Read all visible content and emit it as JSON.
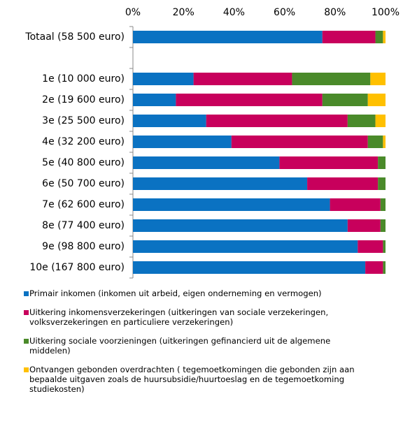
{
  "chart_data": {
    "type": "stacked-bar-horizontal",
    "categories": [
      "Totaal (58 500 euro)",
      null,
      "1e (10 000 euro)",
      "2e (19 600 euro)",
      "3e (25 500 euro)",
      "4e (32 200 euro)",
      "5e (40 800 euro)",
      "6e (50 700 euro)",
      "7e (62 600 euro)",
      "8e (77 400 euro)",
      "9e (98 800 euro)",
      "10e (167 800 euro)"
    ],
    "series": [
      {
        "name": "Primair inkomen (inkomen uit arbeid, eigen onderneming en vermogen)",
        "color": "#0a72c2",
        "values": [
          75,
          null,
          24,
          17,
          29,
          39,
          58,
          69,
          78,
          85,
          89,
          92
        ]
      },
      {
        "name": "Uitkering inkomensverzekeringen (uitkeringen van sociale verzekeringen, volksverzekeringen en particuliere verzekeringen)",
        "color": "#c8005c",
        "values": [
          21,
          null,
          39,
          58,
          56,
          54,
          39,
          28,
          20,
          13,
          10,
          7
        ]
      },
      {
        "name": "Uitkering sociale voorzieningen (uitkeringen gefinancierd uit de algemene middelen)",
        "color": "#4a8a2a",
        "values": [
          3,
          null,
          31,
          18,
          11,
          6,
          3,
          3,
          2,
          2,
          1,
          1
        ]
      },
      {
        "name": "Ontvangen gebonden overdrachten ( tegemoetkomingen die gebonden zijn aan bepaalde uitgaven zoals de huursubsidie/huurtoeslag en de tegemoetkoming studiekosten)",
        "color": "#ffc000",
        "values": [
          1,
          null,
          6,
          7,
          4,
          1,
          0,
          0,
          0,
          0,
          0,
          0
        ]
      }
    ],
    "xlim": [
      0,
      100
    ],
    "xticks": [
      {
        "value": 0,
        "label": "0%"
      },
      {
        "value": 20,
        "label": "20%"
      },
      {
        "value": 40,
        "label": "40%"
      },
      {
        "value": 60,
        "label": "60%"
      },
      {
        "value": 80,
        "label": "80%"
      },
      {
        "value": 100,
        "label": "100%"
      }
    ],
    "legend": "bottom"
  }
}
